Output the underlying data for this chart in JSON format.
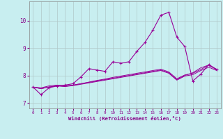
{
  "xlabel": "Windchill (Refroidissement éolien,°C)",
  "background_color": "#c8eef0",
  "line_color": "#990099",
  "grid_color": "#b0c8c8",
  "xlim": [
    -0.5,
    23.5
  ],
  "ylim": [
    6.8,
    10.7
  ],
  "yticks": [
    7,
    8,
    9,
    10
  ],
  "xticks": [
    0,
    1,
    2,
    3,
    4,
    5,
    6,
    7,
    8,
    9,
    10,
    11,
    12,
    13,
    14,
    15,
    16,
    17,
    18,
    19,
    20,
    21,
    22,
    23
  ],
  "series": [
    [
      7.58,
      7.3,
      7.55,
      7.62,
      7.65,
      7.7,
      7.95,
      8.25,
      8.2,
      8.15,
      8.5,
      8.45,
      8.5,
      8.88,
      9.2,
      9.65,
      10.2,
      10.3,
      9.4,
      9.05,
      7.8,
      8.05,
      8.4,
      8.22
    ],
    [
      7.58,
      7.55,
      7.62,
      7.65,
      7.62,
      7.65,
      7.7,
      7.76,
      7.82,
      7.87,
      7.93,
      7.98,
      8.03,
      8.08,
      8.13,
      8.18,
      8.23,
      8.13,
      7.88,
      8.02,
      8.08,
      8.22,
      8.37,
      8.22
    ],
    [
      7.58,
      7.52,
      7.58,
      7.62,
      7.6,
      7.63,
      7.68,
      7.73,
      7.78,
      7.83,
      7.88,
      7.93,
      7.98,
      8.03,
      8.08,
      8.13,
      8.18,
      8.08,
      7.83,
      7.98,
      8.03,
      8.18,
      8.3,
      8.18
    ],
    [
      7.58,
      7.52,
      7.58,
      7.63,
      7.6,
      7.65,
      7.7,
      7.75,
      7.8,
      7.85,
      7.9,
      7.95,
      8.0,
      8.05,
      8.1,
      8.15,
      8.2,
      8.1,
      7.85,
      8.0,
      8.1,
      8.28,
      8.38,
      8.2
    ]
  ]
}
